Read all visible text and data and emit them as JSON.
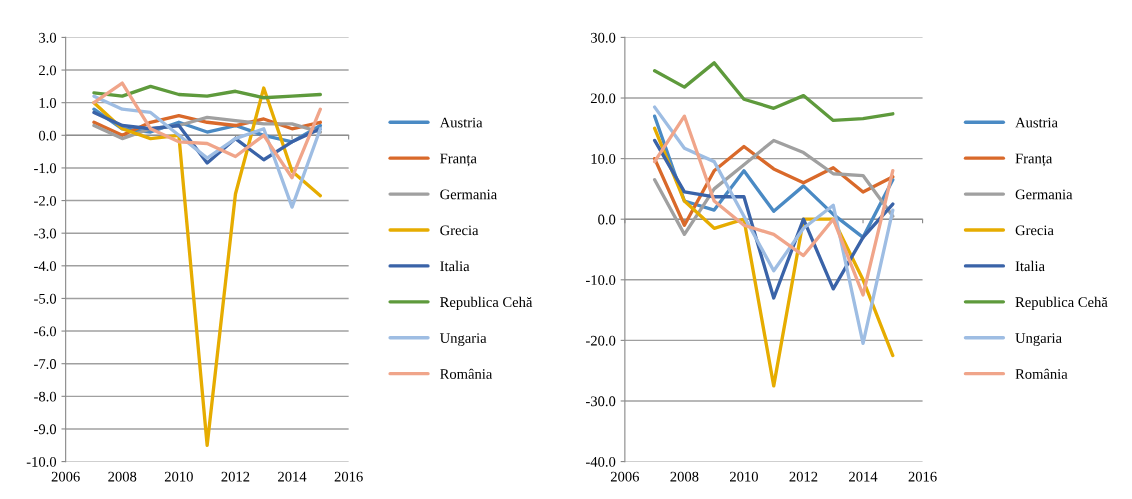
{
  "chart_data": [
    {
      "type": "line",
      "x": [
        2007,
        2008,
        2009,
        2010,
        2011,
        2012,
        2013,
        2014,
        2015
      ],
      "xlim": [
        2006,
        2016
      ],
      "xticks": [
        2006,
        2008,
        2010,
        2012,
        2014,
        2016
      ],
      "ylim": [
        -10,
        3
      ],
      "yticks": [
        {
          "value": -10,
          "label": "-10.0"
        },
        {
          "value": -9,
          "label": "-9.0"
        },
        {
          "value": -8,
          "label": "-8.0"
        },
        {
          "value": -7,
          "label": "-7.0"
        },
        {
          "value": -6,
          "label": "-6.0"
        },
        {
          "value": -5,
          "label": "-5.0"
        },
        {
          "value": -4,
          "label": "-4.0"
        },
        {
          "value": -3,
          "label": "-3.0"
        },
        {
          "value": -2,
          "label": "-2.0"
        },
        {
          "value": -1,
          "label": "-1.0"
        },
        {
          "value": 0,
          "label": "0.0"
        },
        {
          "value": 1,
          "label": "1.0"
        },
        {
          "value": 2,
          "label": "2.0"
        },
        {
          "value": 3,
          "label": "3.0"
        }
      ],
      "grid": "y",
      "legend": "right",
      "marker": "none",
      "line_style": "solid",
      "series": [
        {
          "name": "Austria",
          "color": "#4a8ac4",
          "values": [
            0.8,
            0.2,
            0.1,
            0.4,
            0.1,
            0.3,
            0.0,
            -0.2,
            0.3
          ]
        },
        {
          "name": "Franța",
          "color": "#d9692a",
          "values": [
            0.4,
            0.0,
            0.4,
            0.6,
            0.4,
            0.3,
            0.5,
            0.2,
            0.4
          ]
        },
        {
          "name": "Germania",
          "color": "#a0a0a0",
          "values": [
            0.3,
            -0.1,
            0.2,
            0.3,
            0.55,
            0.45,
            0.35,
            0.35,
            0.1
          ]
        },
        {
          "name": "Grecia",
          "color": "#e6ac00",
          "values": [
            1.0,
            0.2,
            -0.1,
            0.0,
            -9.5,
            -1.8,
            1.45,
            -1.1,
            -1.85
          ]
        },
        {
          "name": "Italia",
          "color": "#3a63a8",
          "values": [
            0.7,
            0.3,
            0.2,
            0.3,
            -0.85,
            -0.1,
            -0.75,
            -0.2,
            0.2
          ]
        },
        {
          "name": "Republica Cehă",
          "color": "#5e9a3c",
          "values": [
            1.3,
            1.2,
            1.5,
            1.25,
            1.2,
            1.35,
            1.15,
            1.2,
            1.25
          ]
        },
        {
          "name": "Ungaria",
          "color": "#9ebde3",
          "values": [
            1.2,
            0.8,
            0.7,
            0.0,
            -0.7,
            -0.1,
            0.2,
            -2.2,
            0.2
          ]
        },
        {
          "name": "România",
          "color": "#f0a58a",
          "values": [
            1.0,
            1.6,
            0.2,
            -0.2,
            -0.25,
            -0.65,
            0.0,
            -1.3,
            0.8
          ]
        }
      ]
    },
    {
      "type": "line",
      "x": [
        2007,
        2008,
        2009,
        2010,
        2011,
        2012,
        2013,
        2014,
        2015
      ],
      "xlim": [
        2006,
        2016
      ],
      "xticks": [
        2006,
        2008,
        2010,
        2012,
        2014,
        2016
      ],
      "ylim": [
        -40,
        30
      ],
      "yticks": [
        {
          "value": -40,
          "label": "-40.0"
        },
        {
          "value": -30,
          "label": "-30.0"
        },
        {
          "value": -20,
          "label": "-20.0"
        },
        {
          "value": -10,
          "label": "-10.0"
        },
        {
          "value": 0,
          "label": "0.0"
        },
        {
          "value": 10,
          "label": "10.0"
        },
        {
          "value": 20,
          "label": "20.0"
        },
        {
          "value": 30,
          "label": "30.0"
        }
      ],
      "grid": "y",
      "legend": "right",
      "marker": "none",
      "line_style": "solid",
      "series": [
        {
          "name": "Austria",
          "color": "#4a8ac4",
          "values": [
            17,
            3,
            1.5,
            8,
            1.3,
            5.5,
            0.8,
            -3,
            6.5
          ]
        },
        {
          "name": "Franța",
          "color": "#d9692a",
          "values": [
            10,
            -1,
            8,
            12,
            8.3,
            6,
            8.5,
            4.5,
            7
          ]
        },
        {
          "name": "Germania",
          "color": "#a0a0a0",
          "values": [
            6.5,
            -2.5,
            5,
            9,
            13,
            11,
            7.5,
            7.2,
            0.5
          ]
        },
        {
          "name": "Grecia",
          "color": "#e6ac00",
          "values": [
            15,
            3,
            -1.5,
            0,
            -27.5,
            0,
            0,
            -10,
            -22.5
          ]
        },
        {
          "name": "Italia",
          "color": "#3a63a8",
          "values": [
            13,
            4.5,
            3.7,
            3.7,
            -13,
            0,
            -11.5,
            -3,
            2.5
          ]
        },
        {
          "name": "Republica Cehă",
          "color": "#5e9a3c",
          "values": [
            24.5,
            21.8,
            25.8,
            19.8,
            18.3,
            20.4,
            16.3,
            16.6,
            17.4
          ]
        },
        {
          "name": "Ungaria",
          "color": "#9ebde3",
          "values": [
            18.5,
            11.7,
            9.5,
            0.5,
            -8.5,
            -1.5,
            2.3,
            -20.5,
            1.5
          ]
        },
        {
          "name": "România",
          "color": "#f0a58a",
          "values": [
            9.5,
            17,
            3,
            -1,
            -2.5,
            -6,
            0,
            -12.5,
            8
          ]
        }
      ]
    }
  ]
}
